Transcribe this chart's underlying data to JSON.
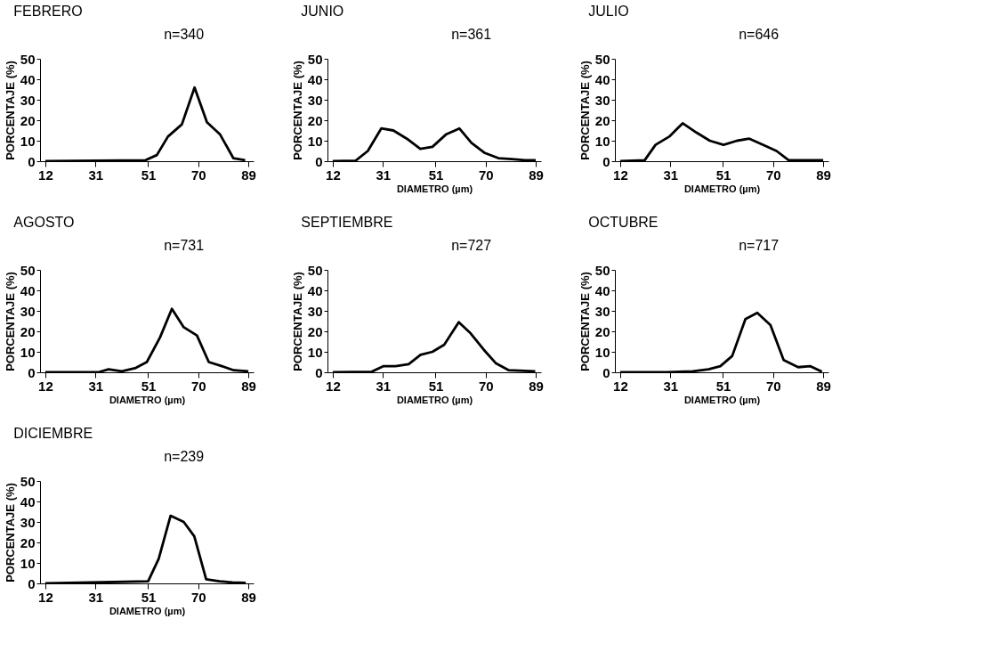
{
  "chart_data": [
    {
      "type": "line",
      "title": "FEBRERO",
      "annotations": [
        "n=340"
      ],
      "ylabel": "PORCENTAJE (%)",
      "xlim": [
        10,
        91
      ],
      "xticks": [
        12,
        31,
        51,
        70,
        89
      ],
      "ylim": [
        0,
        50
      ],
      "yticks": [
        0,
        10,
        20,
        30,
        40,
        50
      ],
      "grid": false,
      "marker": "none",
      "line_style": "solid",
      "series": [
        {
          "color": "#000000",
          "x": [
            12,
            50,
            54.3,
            58.5,
            63.8,
            68.6,
            73.3,
            78.3,
            83.3,
            87.8
          ],
          "values": [
            0,
            0.5,
            3,
            12,
            18,
            36,
            19,
            13,
            1.5,
            0.5
          ]
        }
      ]
    },
    {
      "type": "line",
      "title": "JUNIO",
      "annotations": [
        "n=361"
      ],
      "xlabel": "DIAMETRO (µm)",
      "ylabel": "PORCENTAJE (%)",
      "xlim": [
        10,
        91
      ],
      "xticks": [
        12,
        31,
        51,
        70,
        89
      ],
      "ylim": [
        0,
        50
      ],
      "yticks": [
        0,
        10,
        20,
        30,
        40,
        50
      ],
      "grid": false,
      "marker": "none",
      "line_style": "solid",
      "series": [
        {
          "color": "#000000",
          "x": [
            12,
            20.7,
            25.3,
            30.4,
            35,
            40.1,
            45.2,
            49.8,
            54.9,
            60,
            64.6,
            69.7,
            74.8,
            79.9,
            85,
            89
          ],
          "values": [
            0,
            0.3,
            5,
            16,
            15,
            11,
            6,
            7,
            13,
            16,
            9,
            4,
            1.5,
            1,
            0.5,
            0.5
          ]
        }
      ]
    },
    {
      "type": "line",
      "title": "JULIO",
      "annotations": [
        "n=646"
      ],
      "xlabel": "DIAMETRO (µm)",
      "ylabel": "PORCENTAJE (%)",
      "xlim": [
        10,
        91
      ],
      "xticks": [
        12,
        31,
        51,
        70,
        89
      ],
      "ylim": [
        0,
        50
      ],
      "yticks": [
        0,
        10,
        20,
        30,
        40,
        50
      ],
      "grid": false,
      "marker": "none",
      "line_style": "solid",
      "series": [
        {
          "color": "#000000",
          "x": [
            12,
            21.3,
            25.4,
            30.6,
            35.7,
            40.9,
            46,
            51.2,
            56.3,
            61,
            66.1,
            71.3,
            75.9,
            81.1,
            89
          ],
          "values": [
            0,
            0.5,
            8,
            12,
            18.5,
            14,
            10,
            8,
            10,
            11,
            8,
            5,
            0.5,
            0.5,
            0.5
          ]
        }
      ]
    },
    {
      "type": "line",
      "title": "AGOSTO",
      "annotations": [
        "n=731"
      ],
      "xlabel": "DIAMETRO (µm)",
      "ylabel": "PORCENTAJE (%)",
      "xlim": [
        10,
        91
      ],
      "xticks": [
        12,
        31,
        51,
        70,
        89
      ],
      "ylim": [
        0,
        50
      ],
      "yticks": [
        0,
        10,
        20,
        30,
        40,
        50
      ],
      "grid": false,
      "marker": "none",
      "line_style": "solid",
      "series": [
        {
          "color": "#000000",
          "x": [
            12,
            32,
            36,
            41,
            46,
            50.5,
            55.5,
            60,
            64.5,
            69.5,
            74,
            79,
            83.5,
            89
          ],
          "values": [
            0,
            0,
            1.5,
            0.5,
            2,
            5,
            17,
            31,
            22,
            18,
            5,
            3,
            1,
            0.5
          ]
        }
      ]
    },
    {
      "type": "line",
      "title": "SEPTIEMBRE",
      "annotations": [
        "n=727"
      ],
      "xlabel": "DIAMETRO (µm)",
      "ylabel": "PORCENTAJE (%)",
      "xlim": [
        10,
        91
      ],
      "xticks": [
        12,
        31,
        51,
        70,
        89
      ],
      "ylim": [
        0,
        50
      ],
      "yticks": [
        0,
        10,
        20,
        30,
        40,
        50
      ],
      "grid": false,
      "marker": "none",
      "line_style": "solid",
      "series": [
        {
          "color": "#000000",
          "x": [
            12,
            26.8,
            31.3,
            35.8,
            40.8,
            45.3,
            49.8,
            54.3,
            59.8,
            64.3,
            69.3,
            73.8,
            78.8,
            88.8
          ],
          "values": [
            0,
            0.3,
            3,
            3,
            4,
            8.5,
            10,
            13.5,
            24.5,
            19,
            11,
            4.5,
            1,
            0.5
          ]
        }
      ]
    },
    {
      "type": "line",
      "title": "OCTUBRE",
      "annotations": [
        "n=717"
      ],
      "xlabel": "DIAMETRO (µm)",
      "ylabel": "PORCENTAJE (%)",
      "xlim": [
        10,
        91
      ],
      "xticks": [
        12,
        31,
        51,
        70,
        89
      ],
      "ylim": [
        0,
        50
      ],
      "yticks": [
        0,
        10,
        20,
        30,
        40,
        50
      ],
      "grid": false,
      "marker": "none",
      "line_style": "solid",
      "series": [
        {
          "color": "#000000",
          "x": [
            12,
            29.5,
            39.5,
            45.5,
            50,
            54.5,
            59.5,
            64,
            69,
            74,
            79.5,
            84,
            88.5
          ],
          "values": [
            0,
            0,
            0.5,
            1.5,
            3,
            8,
            26,
            29,
            23,
            6,
            2.5,
            3,
            0.3
          ]
        }
      ]
    },
    {
      "type": "line",
      "title": "DICIEMBRE",
      "annotations": [
        "n=239"
      ],
      "xlabel": "DIAMETRO (µm)",
      "ylabel": "PORCENTAJE (%)",
      "xlim": [
        10,
        91
      ],
      "xticks": [
        12,
        31,
        51,
        70,
        89
      ],
      "ylim": [
        0,
        50
      ],
      "yticks": [
        0,
        10,
        20,
        30,
        40,
        50
      ],
      "grid": false,
      "marker": "none",
      "line_style": "solid",
      "series": [
        {
          "color": "#000000",
          "x": [
            12,
            51,
            55,
            59.5,
            64.5,
            68.5,
            73,
            78,
            83,
            88
          ],
          "values": [
            0,
            1,
            12,
            33,
            30,
            23,
            2,
            1,
            0.5,
            0.3
          ]
        }
      ]
    }
  ]
}
